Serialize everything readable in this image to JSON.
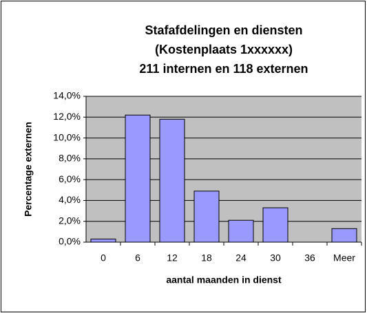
{
  "chart_data": {
    "type": "bar",
    "title": [
      "Stafafdelingen en diensten",
      "(Kostenplaats 1xxxxxx)",
      "211 internen en 118 externen"
    ],
    "x_label": "aantal maanden in dienst",
    "y_label": "Percentage externen",
    "categories": [
      "0",
      "6",
      "12",
      "18",
      "24",
      "30",
      "36",
      "Meer"
    ],
    "values": [
      0.3,
      12.2,
      11.8,
      4.9,
      2.1,
      3.3,
      0,
      1.3
    ],
    "color": "#9999ff",
    "ylim": [
      0,
      14
    ],
    "yticks": [
      {
        "value": 0,
        "label": "0,0%"
      },
      {
        "value": 2,
        "label": "2,0%"
      },
      {
        "value": 4,
        "label": "4,0%"
      },
      {
        "value": 6,
        "label": "6,0%"
      },
      {
        "value": 8,
        "label": "8,0%"
      },
      {
        "value": 10,
        "label": "10,0%"
      },
      {
        "value": 12,
        "label": "12,0%"
      },
      {
        "value": 14,
        "label": "14,0%"
      }
    ],
    "grid": true
  }
}
